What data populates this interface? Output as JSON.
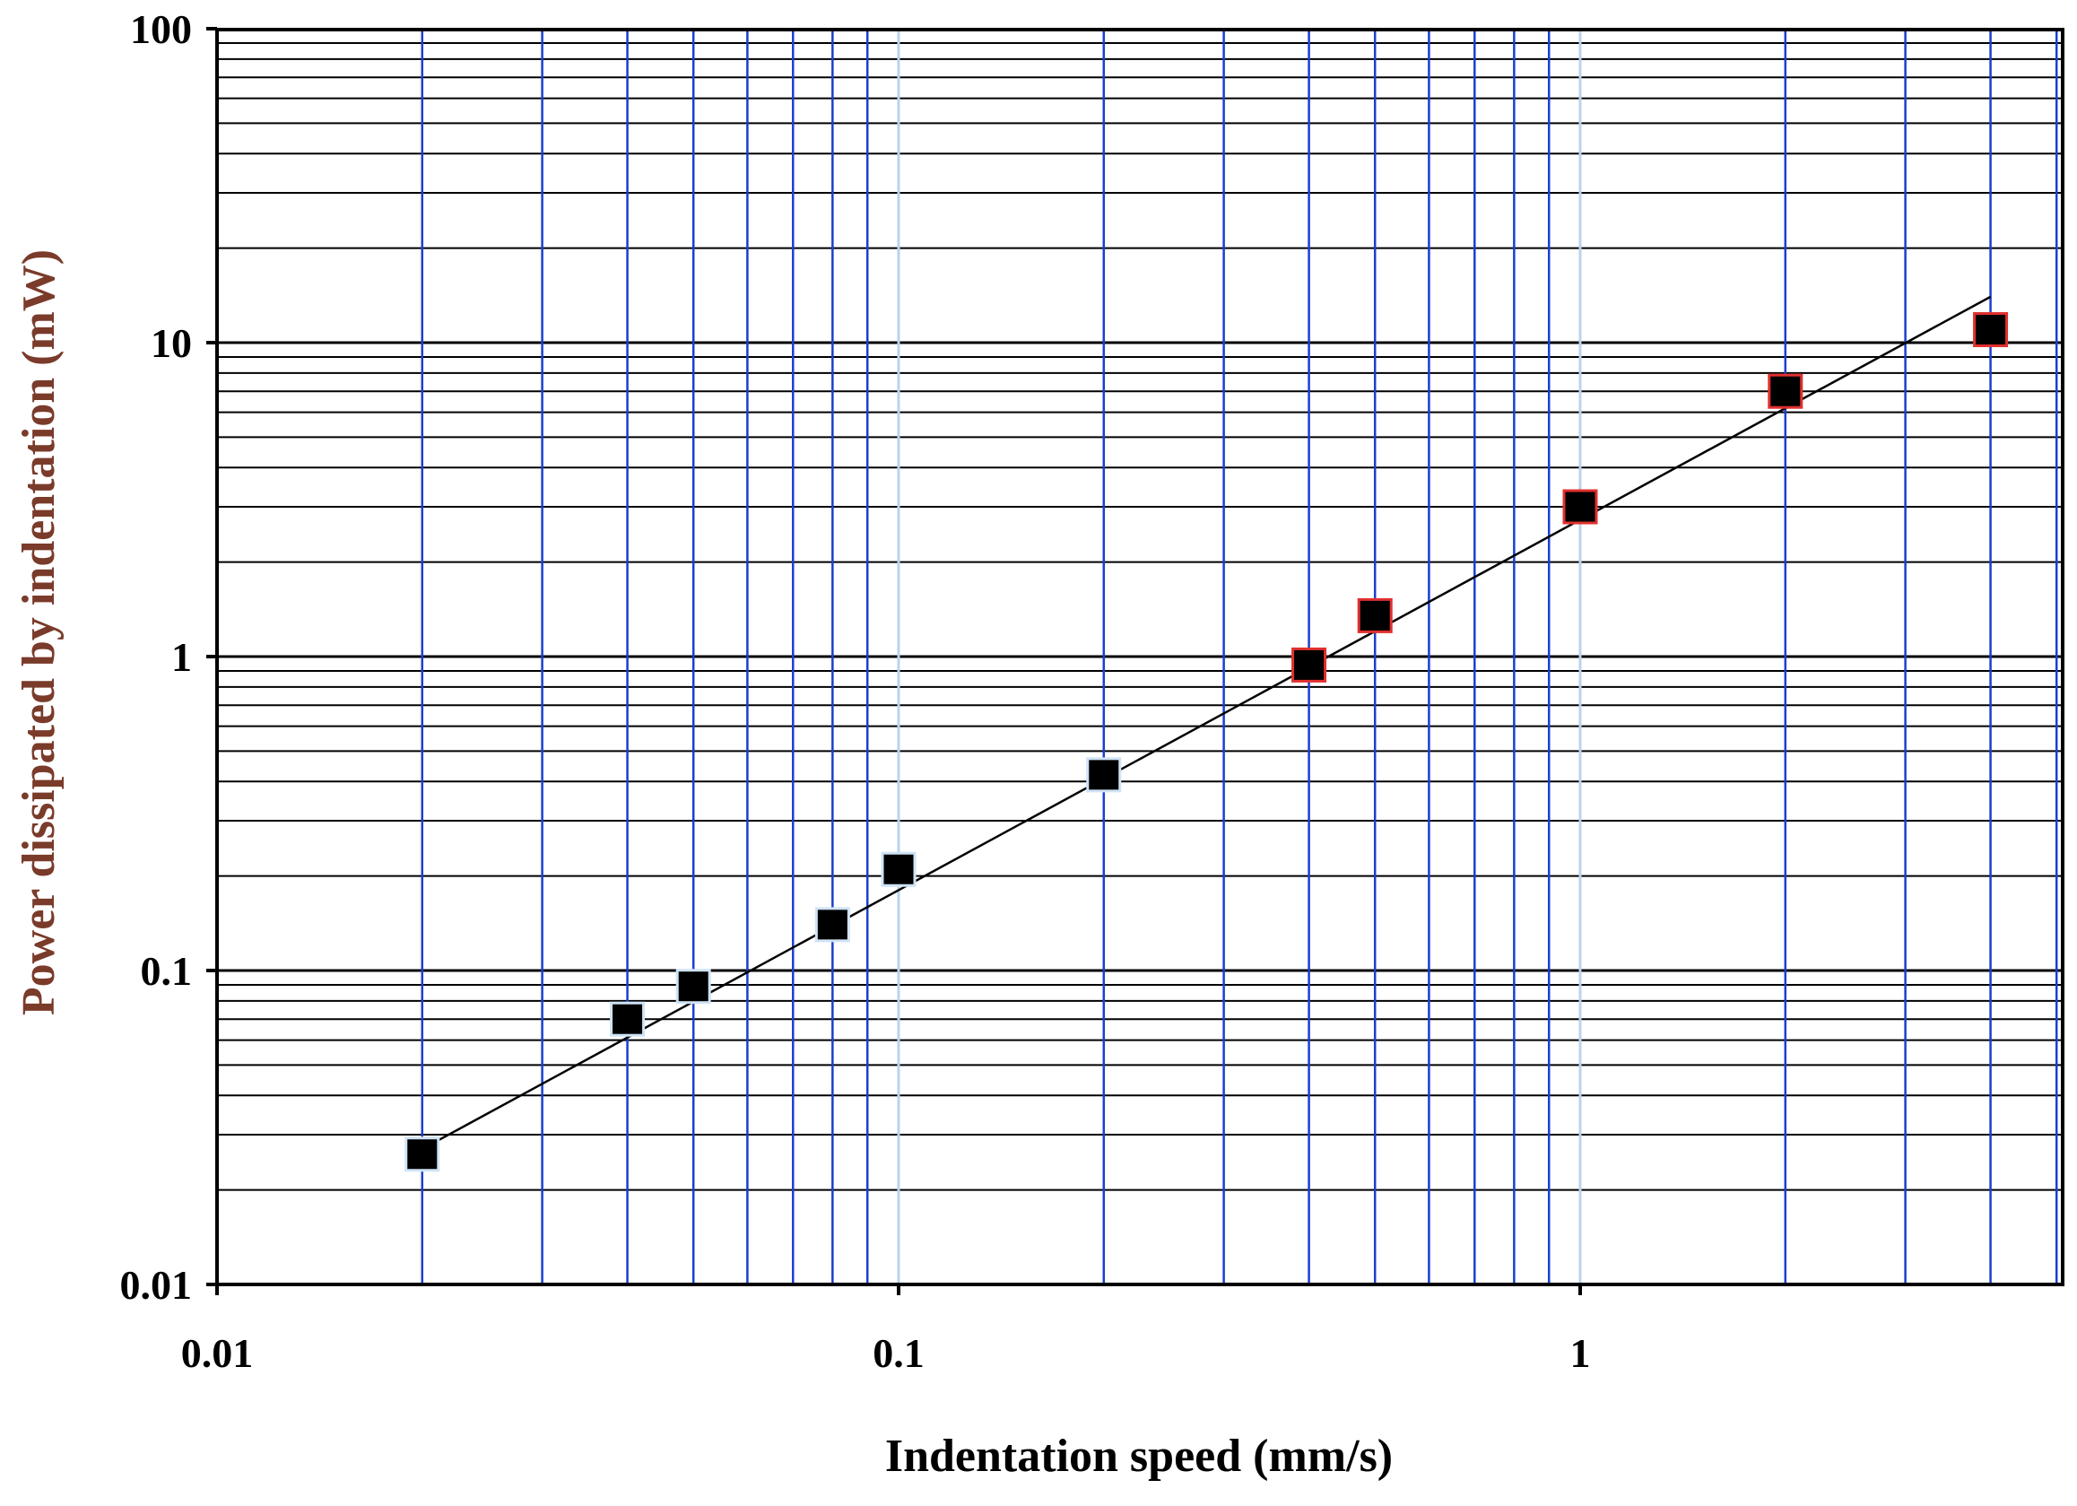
{
  "chart_data": {
    "type": "scatter",
    "xlabel": "Indentation speed (mm/s)",
    "ylabel": "Power dissipated by indentation (mW)",
    "x_scale": "log",
    "y_scale": "log",
    "xlim": [
      0.01,
      5
    ],
    "ylim": [
      0.01,
      100
    ],
    "x_ticks": [
      "0.01",
      "0.1",
      "1"
    ],
    "y_ticks": [
      "0.01",
      "0.1",
      "1",
      "10",
      "100"
    ],
    "grid": true,
    "x": [
      0.02,
      0.04,
      0.05,
      0.08,
      0.1,
      0.2,
      0.4,
      0.5,
      1,
      2,
      4
    ],
    "y": [
      0.026,
      0.07,
      0.089,
      0.14,
      0.21,
      0.42,
      0.94,
      1.35,
      3.0,
      7.0,
      11.0
    ],
    "trendline": {
      "x": [
        0.02,
        4
      ],
      "y": [
        0.027,
        14
      ]
    },
    "colors": {
      "marker_fill": "#000000",
      "marker_edge_low": "#cfe3f5",
      "marker_edge_high": "#e03030",
      "vertical_grid": "#1a3fd0",
      "vertical_grid_decade": "#b8d4ec",
      "horizontal_grid": "#000000"
    }
  }
}
